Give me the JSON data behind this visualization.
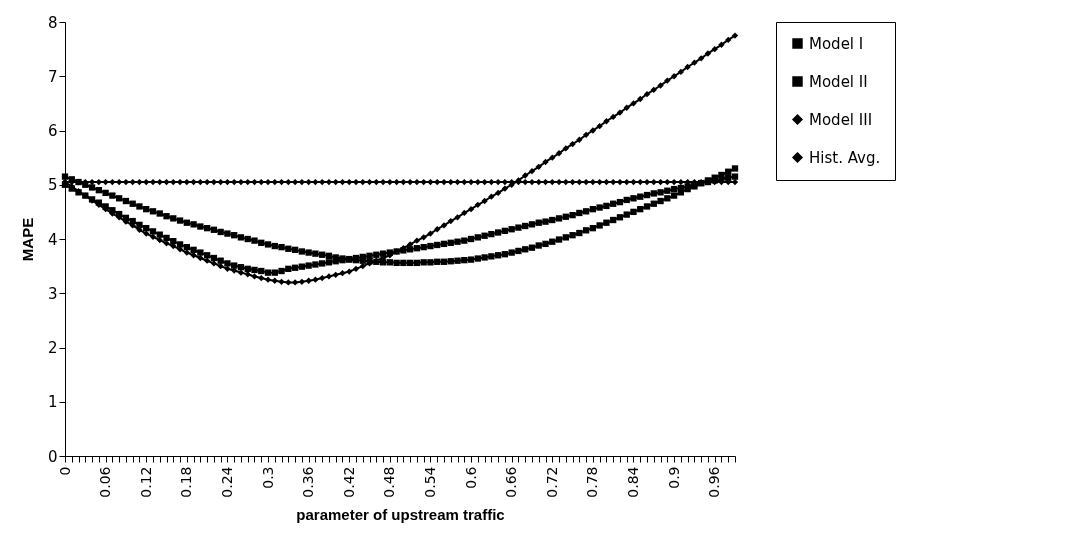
{
  "chart_data": {
    "type": "line",
    "xlabel": "parameter of upstream traffic",
    "ylabel": "MAPE",
    "ylim": [
      0,
      8
    ],
    "yticks": [
      0,
      1,
      2,
      3,
      4,
      5,
      6,
      7,
      8
    ],
    "grid": false,
    "legend": "right",
    "categories": [
      "0",
      null,
      null,
      null,
      null,
      null,
      "0.06",
      null,
      null,
      null,
      null,
      null,
      "0.12",
      null,
      null,
      null,
      null,
      null,
      "0.18",
      null,
      null,
      null,
      null,
      null,
      "0.24",
      null,
      null,
      null,
      null,
      null,
      "0.3",
      null,
      null,
      null,
      null,
      null,
      "0.36",
      null,
      null,
      null,
      null,
      null,
      "0.42",
      null,
      null,
      null,
      null,
      null,
      "0.48",
      null,
      null,
      null,
      null,
      null,
      "0.54",
      null,
      null,
      null,
      null,
      null,
      "0.6",
      null,
      null,
      null,
      null,
      null,
      "0.66",
      null,
      null,
      null,
      null,
      null,
      "0.72",
      null,
      null,
      null,
      null,
      null,
      "0.78",
      null,
      null,
      null,
      null,
      null,
      "0.84",
      null,
      null,
      null,
      null,
      null,
      "0.9",
      null,
      null,
      null,
      null,
      null,
      "0.96",
      null,
      null,
      null
    ],
    "series": [
      {
        "name": "Model I",
        "color": "#000000",
        "marker": "square",
        "values": [
          5.0,
          4.93,
          4.86,
          4.8,
          4.73,
          4.67,
          4.6,
          4.53,
          4.46,
          4.39,
          4.33,
          4.26,
          4.2,
          4.14,
          4.08,
          4.02,
          3.96,
          3.9,
          3.85,
          3.8,
          3.75,
          3.7,
          3.65,
          3.6,
          3.55,
          3.51,
          3.48,
          3.45,
          3.43,
          3.41,
          3.38,
          3.38,
          3.41,
          3.45,
          3.47,
          3.49,
          3.51,
          3.53,
          3.55,
          3.57,
          3.59,
          3.61,
          3.63,
          3.65,
          3.67,
          3.69,
          3.71,
          3.73,
          3.75,
          3.77,
          3.79,
          3.81,
          3.83,
          3.85,
          3.87,
          3.89,
          3.91,
          3.93,
          3.95,
          3.97,
          4.0,
          4.03,
          4.06,
          4.09,
          4.12,
          4.15,
          4.18,
          4.21,
          4.24,
          4.27,
          4.3,
          4.32,
          4.35,
          4.38,
          4.41,
          4.44,
          4.48,
          4.51,
          4.55,
          4.58,
          4.61,
          4.65,
          4.68,
          4.72,
          4.75,
          4.78,
          4.81,
          4.84,
          4.86,
          4.89,
          4.92,
          4.94,
          4.97,
          5.0,
          5.03,
          5.05,
          5.08,
          5.1,
          5.13,
          5.15
        ]
      },
      {
        "name": "Model II",
        "color": "#000000",
        "marker": "square",
        "values": [
          5.15,
          5.1,
          5.05,
          5.0,
          4.95,
          4.9,
          4.85,
          4.8,
          4.75,
          4.7,
          4.65,
          4.6,
          4.55,
          4.51,
          4.47,
          4.42,
          4.38,
          4.34,
          4.3,
          4.27,
          4.23,
          4.2,
          4.17,
          4.13,
          4.1,
          4.07,
          4.03,
          4.0,
          3.97,
          3.93,
          3.9,
          3.87,
          3.85,
          3.82,
          3.8,
          3.77,
          3.75,
          3.73,
          3.71,
          3.69,
          3.66,
          3.64,
          3.62,
          3.61,
          3.6,
          3.59,
          3.58,
          3.57,
          3.57,
          3.56,
          3.56,
          3.56,
          3.56,
          3.57,
          3.57,
          3.58,
          3.58,
          3.59,
          3.6,
          3.61,
          3.62,
          3.64,
          3.66,
          3.68,
          3.7,
          3.72,
          3.75,
          3.78,
          3.81,
          3.84,
          3.88,
          3.91,
          3.95,
          3.99,
          4.03,
          4.07,
          4.11,
          4.16,
          4.2,
          4.25,
          4.3,
          4.35,
          4.4,
          4.45,
          4.5,
          4.55,
          4.6,
          4.65,
          4.7,
          4.75,
          4.8,
          4.86,
          4.92,
          4.97,
          5.03,
          5.08,
          5.13,
          5.18,
          5.24,
          5.3
        ]
      },
      {
        "name": "Model III",
        "color": "#000000",
        "marker": "diamond",
        "values": [
          5.05,
          4.97,
          4.88,
          4.8,
          4.71,
          4.63,
          4.55,
          4.47,
          4.4,
          4.32,
          4.25,
          4.17,
          4.1,
          4.04,
          3.98,
          3.92,
          3.87,
          3.81,
          3.75,
          3.7,
          3.65,
          3.6,
          3.55,
          3.5,
          3.45,
          3.42,
          3.38,
          3.35,
          3.31,
          3.28,
          3.25,
          3.23,
          3.21,
          3.2,
          3.2,
          3.21,
          3.23,
          3.25,
          3.28,
          3.31,
          3.34,
          3.37,
          3.4,
          3.45,
          3.5,
          3.55,
          3.6,
          3.65,
          3.7,
          3.77,
          3.83,
          3.9,
          3.97,
          4.03,
          4.1,
          4.18,
          4.25,
          4.33,
          4.4,
          4.48,
          4.55,
          4.63,
          4.7,
          4.78,
          4.85,
          4.93,
          5.0,
          5.08,
          5.17,
          5.25,
          5.33,
          5.42,
          5.5,
          5.58,
          5.67,
          5.75,
          5.83,
          5.92,
          6.0,
          6.08,
          6.17,
          6.25,
          6.33,
          6.42,
          6.5,
          6.58,
          6.67,
          6.75,
          6.83,
          6.92,
          7.0,
          7.08,
          7.17,
          7.25,
          7.33,
          7.42,
          7.5,
          7.58,
          7.67,
          7.75
        ]
      },
      {
        "name": "Hist. Avg.",
        "color": "#000000",
        "marker": "diamond",
        "values": [
          5.05,
          5.05,
          5.05,
          5.05,
          5.05,
          5.05,
          5.05,
          5.05,
          5.05,
          5.05,
          5.05,
          5.05,
          5.05,
          5.05,
          5.05,
          5.05,
          5.05,
          5.05,
          5.05,
          5.05,
          5.05,
          5.05,
          5.05,
          5.05,
          5.05,
          5.05,
          5.05,
          5.05,
          5.05,
          5.05,
          5.05,
          5.05,
          5.05,
          5.05,
          5.05,
          5.05,
          5.05,
          5.05,
          5.05,
          5.05,
          5.05,
          5.05,
          5.05,
          5.05,
          5.05,
          5.05,
          5.05,
          5.05,
          5.05,
          5.05,
          5.05,
          5.05,
          5.05,
          5.05,
          5.05,
          5.05,
          5.05,
          5.05,
          5.05,
          5.05,
          5.05,
          5.05,
          5.05,
          5.05,
          5.05,
          5.05,
          5.05,
          5.05,
          5.05,
          5.05,
          5.05,
          5.05,
          5.05,
          5.05,
          5.05,
          5.05,
          5.05,
          5.05,
          5.05,
          5.05,
          5.05,
          5.05,
          5.05,
          5.05,
          5.05,
          5.05,
          5.05,
          5.05,
          5.05,
          5.05,
          5.05,
          5.05,
          5.05,
          5.05,
          5.05,
          5.05,
          5.05,
          5.05,
          5.05,
          5.05
        ]
      }
    ]
  }
}
